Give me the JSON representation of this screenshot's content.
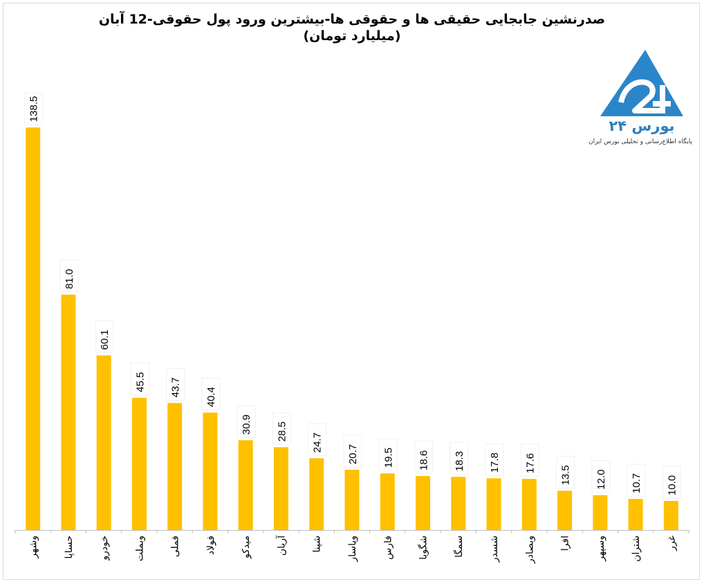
{
  "chart_data": {
    "type": "bar",
    "title": "صدرنشین جابجایی حقیقی ها و حقوقی ها-بیشترین ورود پول حقوقی-12 آبان",
    "subtitle": "(میلیارد تومان)",
    "categories": [
      "وشهر",
      "حساپا",
      "خودرو",
      "وبملت",
      "فملی",
      "فولاد",
      "میدکو",
      "آریان",
      "شپنا",
      "وپاسار",
      "فارس",
      "شگویا",
      "سمگا",
      "شسدر",
      "وبصادر",
      "افرا",
      "وسپهر",
      "شتران",
      "غرر"
    ],
    "values": [
      138.5,
      81.0,
      60.1,
      45.5,
      43.7,
      40.4,
      30.9,
      28.5,
      24.7,
      20.7,
      19.5,
      18.6,
      18.3,
      17.8,
      17.6,
      13.5,
      12.0,
      10.7,
      10.0
    ],
    "ylim": [
      0,
      150
    ],
    "grid": false,
    "legend": "none",
    "bar_color": "#FFC000",
    "label_format": "one-decimal"
  },
  "logo": {
    "name": "بورس ۲۴",
    "tagline": "پایگاه اطلاع‌رسانی و تحلیلی بورس ایران",
    "color": "#2a7fbf"
  }
}
